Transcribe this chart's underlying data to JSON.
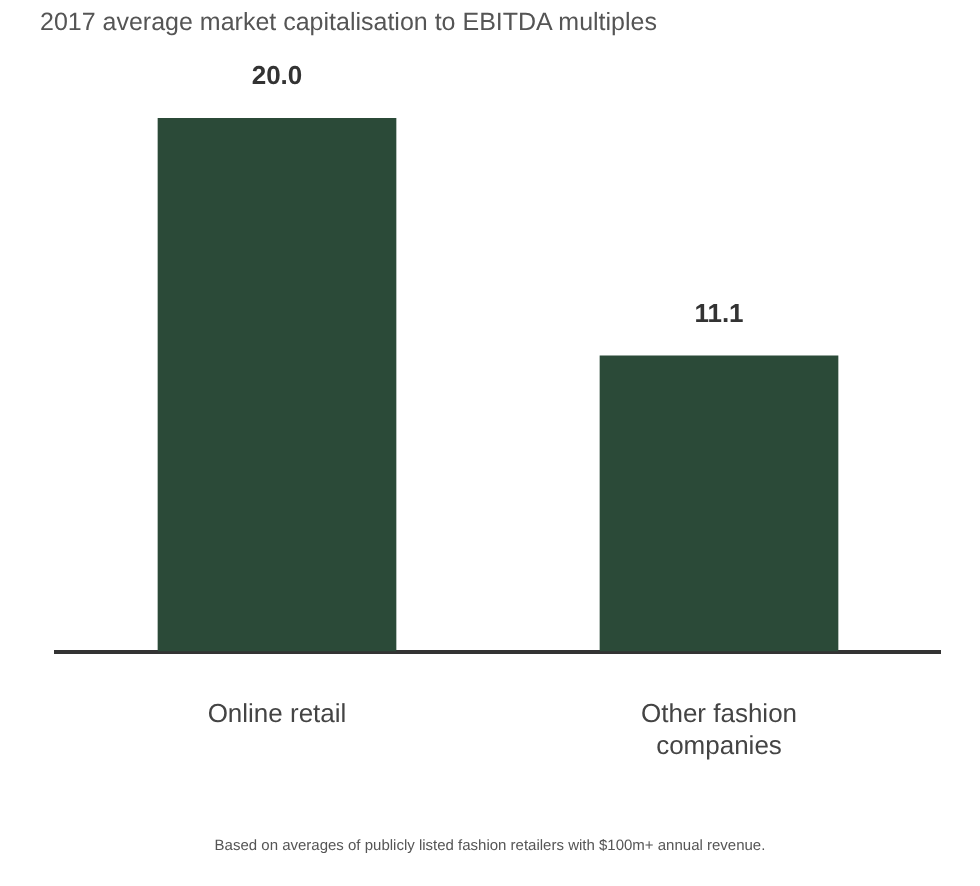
{
  "chart_data": {
    "type": "bar",
    "title": "2017 average market capitalisation to EBITDA multiples",
    "categories": [
      "Online retail",
      "Other fashion companies"
    ],
    "values": [
      20.0,
      11.1
    ],
    "value_labels": [
      "20.0",
      "11.1"
    ],
    "color": "#2b4a38",
    "grid": false,
    "legend": false,
    "annotations": [
      "Based on averages of publicly listed fashion retailers with $100m+ annual revenue."
    ]
  }
}
